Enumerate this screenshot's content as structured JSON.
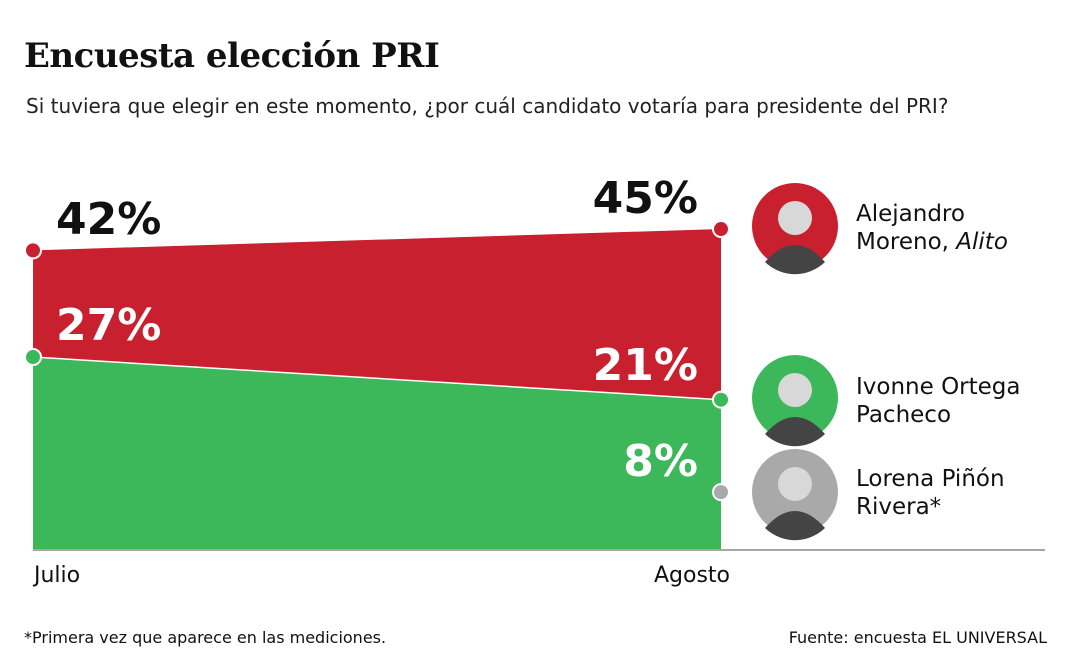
{
  "title": "Encuesta elección PRI",
  "subtitle": "Si tuviera que elegir en este momento, ¿por cuál candidato votaría para presidente del PRI?",
  "chart_data": {
    "type": "area",
    "categories": [
      "Julio",
      "Agosto"
    ],
    "ylim": [
      0,
      55
    ],
    "grid": false,
    "series": [
      {
        "name": "Alejandro Moreno, Alito",
        "name_line1": "Alejandro",
        "name_line2a": "Moreno, ",
        "name_line2b": "Alito",
        "color": "#c8202f",
        "values": [
          42,
          45
        ],
        "labels": [
          "42%",
          "45%"
        ]
      },
      {
        "name": "Ivonne Ortega Pacheco",
        "name_line1": "Ivonne Ortega",
        "name_line2": "Pacheco",
        "color": "#3cb85a",
        "values": [
          27,
          21
        ],
        "labels": [
          "27%",
          "21%"
        ]
      },
      {
        "name": "Lorena Piñón Rivera*",
        "name_line1": "Lorena Piñón",
        "name_line2": "Rivera*",
        "color": "#a9a9a9",
        "values": [
          null,
          8
        ],
        "labels": [
          "",
          "8%"
        ]
      }
    ]
  },
  "footnote": "*Primera vez que aparece en las mediciones.",
  "source": "Fuente: encuesta EL UNIVERSAL"
}
